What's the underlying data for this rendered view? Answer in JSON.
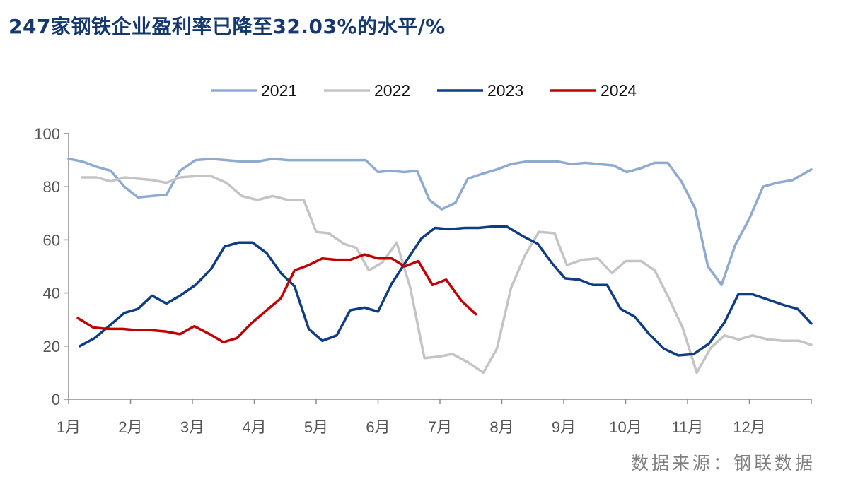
{
  "title": "247家钢铁企业盈利率已降至32.03%的水平/%",
  "source": "数据来源：钢联数据",
  "chart_data": {
    "type": "line",
    "title": "247家钢铁企业盈利率已降至32.03%的水平/%",
    "x_tick_labels": [
      "1月",
      "2月",
      "3月",
      "4月",
      "5月",
      "6月",
      "7月",
      "8月",
      "9月",
      "10月",
      "11月",
      "12月"
    ],
    "xlim": [
      1,
      13
    ],
    "ylim": [
      0,
      100
    ],
    "y_ticks": [
      0,
      20,
      40,
      60,
      80,
      100
    ],
    "y_tick_labels": [
      "0",
      "20",
      "40",
      "60",
      "80",
      "100"
    ],
    "legend_position": "top-center",
    "grid": false,
    "series": [
      {
        "name": "2021",
        "color": "#8faad1",
        "points": [
          [
            1.0,
            90.5
          ],
          [
            1.22,
            89.5
          ],
          [
            1.45,
            87.5
          ],
          [
            1.68,
            86
          ],
          [
            1.9,
            80
          ],
          [
            2.12,
            76
          ],
          [
            2.35,
            76.5
          ],
          [
            2.58,
            77
          ],
          [
            2.8,
            86
          ],
          [
            3.05,
            90
          ],
          [
            3.3,
            90.5
          ],
          [
            3.55,
            90
          ],
          [
            3.8,
            89.5
          ],
          [
            4.05,
            89.5
          ],
          [
            4.3,
            90.5
          ],
          [
            4.55,
            90
          ],
          [
            4.8,
            90
          ],
          [
            5.05,
            90
          ],
          [
            5.3,
            90
          ],
          [
            5.55,
            90
          ],
          [
            5.8,
            90
          ],
          [
            6.0,
            85.5
          ],
          [
            6.2,
            86
          ],
          [
            6.42,
            85.5
          ],
          [
            6.63,
            86
          ],
          [
            6.83,
            75
          ],
          [
            7.03,
            71.5
          ],
          [
            7.25,
            74
          ],
          [
            7.45,
            83
          ],
          [
            7.7,
            85
          ],
          [
            7.92,
            86.5
          ],
          [
            8.15,
            88.5
          ],
          [
            8.4,
            89.5
          ],
          [
            8.65,
            89.5
          ],
          [
            8.9,
            89.5
          ],
          [
            9.12,
            88.5
          ],
          [
            9.35,
            89
          ],
          [
            9.58,
            88.5
          ],
          [
            9.8,
            88
          ],
          [
            10.02,
            85.5
          ],
          [
            10.25,
            87
          ],
          [
            10.47,
            89
          ],
          [
            10.68,
            89
          ],
          [
            10.9,
            82
          ],
          [
            11.12,
            72
          ],
          [
            11.33,
            50
          ],
          [
            11.55,
            43
          ],
          [
            11.77,
            58
          ],
          [
            12.0,
            68
          ],
          [
            12.22,
            80
          ],
          [
            12.45,
            81.5
          ],
          [
            12.7,
            82.5
          ],
          [
            13.0,
            86.5
          ]
        ]
      },
      {
        "name": "2022",
        "color": "#c4c4c4",
        "points": [
          [
            1.22,
            83.5
          ],
          [
            1.45,
            83.5
          ],
          [
            1.68,
            82
          ],
          [
            1.9,
            83.5
          ],
          [
            2.12,
            83
          ],
          [
            2.35,
            82.5
          ],
          [
            2.58,
            81.5
          ],
          [
            2.8,
            83.5
          ],
          [
            3.05,
            84
          ],
          [
            3.3,
            84
          ],
          [
            3.55,
            81.5
          ],
          [
            3.8,
            76.5
          ],
          [
            4.05,
            75
          ],
          [
            4.3,
            76.5
          ],
          [
            4.55,
            75
          ],
          [
            4.8,
            75
          ],
          [
            5.0,
            63
          ],
          [
            5.2,
            62.5
          ],
          [
            5.45,
            58.5
          ],
          [
            5.65,
            57
          ],
          [
            5.85,
            48.5
          ],
          [
            6.07,
            51.5
          ],
          [
            6.3,
            59
          ],
          [
            6.52,
            42
          ],
          [
            6.75,
            15.5
          ],
          [
            6.97,
            16
          ],
          [
            7.2,
            17
          ],
          [
            7.45,
            14
          ],
          [
            7.7,
            10
          ],
          [
            7.92,
            19
          ],
          [
            8.15,
            42
          ],
          [
            8.38,
            54.5
          ],
          [
            8.6,
            63
          ],
          [
            8.85,
            62.5
          ],
          [
            9.05,
            50.5
          ],
          [
            9.3,
            52.5
          ],
          [
            9.55,
            53
          ],
          [
            9.78,
            47.5
          ],
          [
            10.0,
            52
          ],
          [
            10.25,
            52
          ],
          [
            10.47,
            48.5
          ],
          [
            10.7,
            38
          ],
          [
            10.92,
            27
          ],
          [
            11.15,
            10
          ],
          [
            11.38,
            19.5
          ],
          [
            11.6,
            24
          ],
          [
            11.83,
            22.5
          ],
          [
            12.05,
            24
          ],
          [
            12.3,
            22.5
          ],
          [
            12.55,
            22
          ],
          [
            12.8,
            22
          ],
          [
            13.0,
            20.5
          ]
        ]
      },
      {
        "name": "2023",
        "color": "#0e3c85",
        "points": [
          [
            1.18,
            20
          ],
          [
            1.42,
            23
          ],
          [
            1.65,
            27.5
          ],
          [
            1.9,
            32.5
          ],
          [
            2.12,
            34
          ],
          [
            2.35,
            39
          ],
          [
            2.58,
            36
          ],
          [
            2.8,
            39
          ],
          [
            3.05,
            43
          ],
          [
            3.3,
            49
          ],
          [
            3.52,
            57.5
          ],
          [
            3.75,
            59
          ],
          [
            3.97,
            59
          ],
          [
            4.2,
            55
          ],
          [
            4.43,
            47.5
          ],
          [
            4.65,
            42.5
          ],
          [
            4.88,
            26.5
          ],
          [
            5.1,
            22
          ],
          [
            5.33,
            24
          ],
          [
            5.55,
            33.5
          ],
          [
            5.78,
            34.5
          ],
          [
            6.0,
            33
          ],
          [
            6.22,
            43.5
          ],
          [
            6.47,
            52.5
          ],
          [
            6.7,
            60.5
          ],
          [
            6.92,
            64.5
          ],
          [
            7.15,
            64
          ],
          [
            7.4,
            64.5
          ],
          [
            7.62,
            64.5
          ],
          [
            7.85,
            65
          ],
          [
            8.08,
            65
          ],
          [
            8.33,
            61.5
          ],
          [
            8.58,
            58.5
          ],
          [
            8.8,
            51.5
          ],
          [
            9.02,
            45.5
          ],
          [
            9.25,
            45
          ],
          [
            9.47,
            43
          ],
          [
            9.7,
            43
          ],
          [
            9.92,
            34
          ],
          [
            10.15,
            31
          ],
          [
            10.38,
            24.5
          ],
          [
            10.62,
            19
          ],
          [
            10.85,
            16.5
          ],
          [
            11.1,
            17
          ],
          [
            11.35,
            21
          ],
          [
            11.6,
            29
          ],
          [
            11.82,
            39.5
          ],
          [
            12.05,
            39.5
          ],
          [
            12.3,
            37.5
          ],
          [
            12.55,
            35.5
          ],
          [
            12.78,
            34
          ],
          [
            13.0,
            28.5
          ]
        ]
      },
      {
        "name": "2024",
        "color": "#c00000",
        "points": [
          [
            1.15,
            30.5
          ],
          [
            1.4,
            27
          ],
          [
            1.62,
            26.5
          ],
          [
            1.87,
            26.5
          ],
          [
            2.1,
            26
          ],
          [
            2.33,
            26
          ],
          [
            2.57,
            25.5
          ],
          [
            2.8,
            24.5
          ],
          [
            3.03,
            27.5
          ],
          [
            3.28,
            24.5
          ],
          [
            3.5,
            21.5
          ],
          [
            3.72,
            23
          ],
          [
            3.95,
            28.5
          ],
          [
            4.2,
            33.5
          ],
          [
            4.43,
            38
          ],
          [
            4.65,
            48.5
          ],
          [
            4.88,
            50.5
          ],
          [
            5.1,
            53
          ],
          [
            5.33,
            52.5
          ],
          [
            5.55,
            52.5
          ],
          [
            5.78,
            54.5
          ],
          [
            6.0,
            53
          ],
          [
            6.22,
            53
          ],
          [
            6.43,
            50
          ],
          [
            6.65,
            52
          ],
          [
            6.88,
            43
          ],
          [
            7.1,
            45
          ],
          [
            7.35,
            37
          ],
          [
            7.58,
            32
          ]
        ]
      }
    ]
  }
}
